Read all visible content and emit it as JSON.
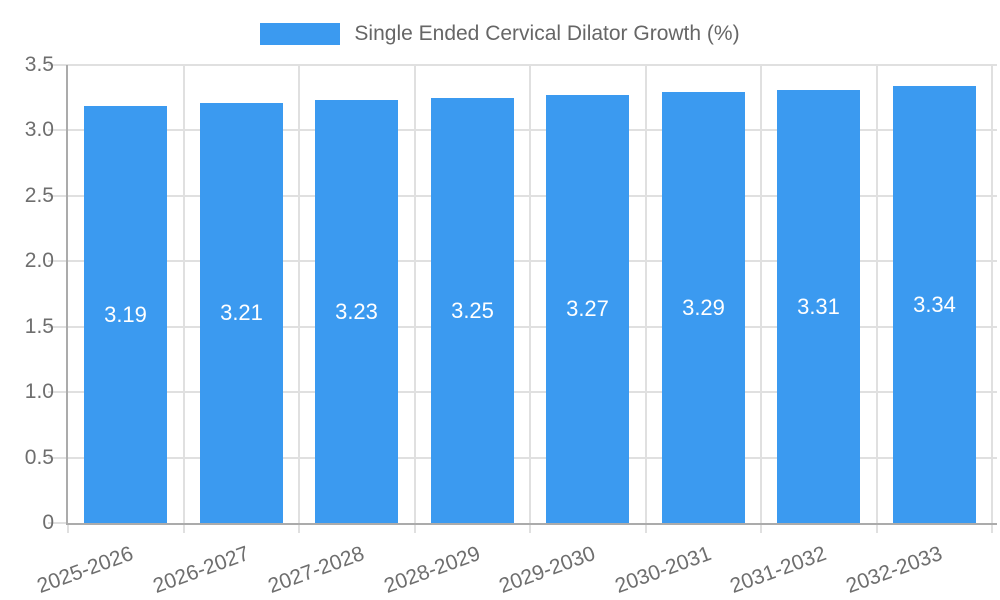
{
  "legend": {
    "label": "Single Ended Cervical Dilator Growth (%)"
  },
  "colors": {
    "bar": "#3b9af0",
    "bar_label": "#ffffff",
    "grid": "#e0e0e0",
    "axis": "#ababab",
    "axis_text": "#6e6e6e",
    "legend_text": "#666666"
  },
  "chart_data": {
    "type": "bar",
    "title": "Single Ended Cervical Dilator Growth (%)",
    "categories": [
      "2025-2026",
      "2026-2027",
      "2027-2028",
      "2028-2029",
      "2029-2030",
      "2030-2031",
      "2031-2032",
      "2032-2033"
    ],
    "values": [
      3.19,
      3.21,
      3.23,
      3.25,
      3.27,
      3.29,
      3.31,
      3.34
    ],
    "bar_labels": [
      "3.19",
      "3.21",
      "3.23",
      "3.25",
      "3.27",
      "3.29",
      "3.31",
      "3.34"
    ],
    "xlabel": "",
    "ylabel": "",
    "ylim": [
      0,
      3.5
    ],
    "ytick_labels": [
      "3.5",
      "3.0",
      "2.5",
      "2.0",
      "1.5",
      "1.0",
      "0.5",
      "0"
    ],
    "grid": true,
    "legend_position": "top",
    "x_label_rotation_deg": -20
  }
}
